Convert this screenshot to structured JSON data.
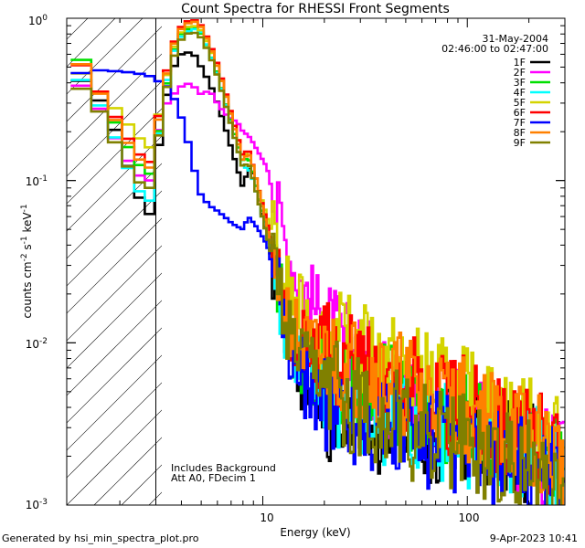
{
  "chart_data": {
    "type": "line",
    "title": "Count Spectra for RHESSI Front Segments",
    "xlabel": "Energy (keV)",
    "ylabel": "counts cm⁻² s⁻¹ keV⁻¹",
    "xscale": "log",
    "yscale": "log",
    "xlim": [
      1.1,
      300
    ],
    "ylim": [
      0.001,
      1.0
    ],
    "x_tick_labels": [
      "10",
      "100"
    ],
    "y_tick_labels": [
      "10⁻³",
      "10⁻²",
      "10⁻¹",
      "10⁰"
    ],
    "legend_position": "top-right",
    "date": "31-May-2004",
    "time_range": "02:46:00 to 02:47:00",
    "annotations": [
      "Includes Background",
      "Att A0, FDecim 1"
    ],
    "excluded_region_keV": [
      1.1,
      3.0
    ],
    "series": [
      {
        "name": "1F",
        "color": "#000000",
        "x": [
          1.2,
          1.5,
          2.0,
          2.4,
          2.8,
          3.0,
          3.4,
          3.8,
          4.2,
          4.6,
          5.0,
          5.5,
          6.0,
          6.5,
          7.0,
          7.5,
          8.0,
          8.5,
          9.0,
          9.5,
          10.5,
          11.5,
          12.5,
          14,
          16,
          18,
          20,
          22,
          25,
          28,
          32,
          36,
          40,
          45,
          50,
          60,
          70,
          80,
          100,
          120,
          150,
          200,
          250,
          290
        ],
        "y": [
          0.44,
          0.36,
          0.18,
          0.085,
          0.062,
          0.13,
          0.34,
          0.58,
          0.62,
          0.6,
          0.5,
          0.4,
          0.3,
          0.22,
          0.16,
          0.12,
          0.09,
          0.12,
          0.11,
          0.08,
          0.045,
          0.026,
          0.014,
          0.0085,
          0.006,
          0.005,
          0.0045,
          0.0035,
          0.003,
          0.004,
          0.0035,
          0.003,
          0.004,
          0.0032,
          0.0034,
          0.003,
          0.0028,
          0.0034,
          0.003,
          0.0028,
          0.0024,
          0.0021,
          0.0018,
          0.0015
        ]
      },
      {
        "name": "2F",
        "color": "#ff00ff",
        "x": [
          1.2,
          1.5,
          2.0,
          2.4,
          2.8,
          3.0,
          3.4,
          3.8,
          4.2,
          4.6,
          5.0,
          5.5,
          6.0,
          6.5,
          7.0,
          7.5,
          8.0,
          8.5,
          9.0,
          9.5,
          10.5,
          11.5,
          12.5,
          14,
          16,
          18,
          20,
          22,
          25,
          28,
          32,
          36,
          40,
          45,
          50,
          60,
          70,
          80,
          100,
          120,
          150,
          200,
          250,
          290
        ],
        "y": [
          0.42,
          0.32,
          0.16,
          0.11,
          0.1,
          0.18,
          0.3,
          0.36,
          0.4,
          0.38,
          0.34,
          0.36,
          0.3,
          0.26,
          0.24,
          0.23,
          0.2,
          0.19,
          0.17,
          0.15,
          0.12,
          0.07,
          0.05,
          0.03,
          0.022,
          0.017,
          0.013,
          0.011,
          0.009,
          0.008,
          0.007,
          0.006,
          0.0055,
          0.0048,
          0.0045,
          0.004,
          0.0038,
          0.0036,
          0.0033,
          0.003,
          0.0026,
          0.0022,
          0.0019,
          0.0016
        ]
      },
      {
        "name": "3F",
        "color": "#00e000",
        "x": [
          1.2,
          1.5,
          2.0,
          2.4,
          2.8,
          3.0,
          3.4,
          3.8,
          4.2,
          4.6,
          5.0,
          5.5,
          6.0,
          6.5,
          7.0,
          7.5,
          8.0,
          8.5,
          9.0,
          9.5,
          10.5,
          11.5,
          12.5,
          14,
          16,
          18,
          20,
          22,
          25,
          28,
          32,
          36,
          40,
          45,
          50,
          60,
          70,
          80,
          100,
          120,
          150,
          200,
          250,
          290
        ],
        "y": [
          0.65,
          0.4,
          0.2,
          0.13,
          0.11,
          0.16,
          0.4,
          0.75,
          0.85,
          0.88,
          0.8,
          0.62,
          0.46,
          0.32,
          0.23,
          0.17,
          0.13,
          0.14,
          0.11,
          0.08,
          0.05,
          0.03,
          0.016,
          0.01,
          0.008,
          0.007,
          0.0065,
          0.006,
          0.0058,
          0.0056,
          0.0054,
          0.005,
          0.0048,
          0.0046,
          0.0045,
          0.0042,
          0.004,
          0.0038,
          0.0035,
          0.0031,
          0.0027,
          0.0023,
          0.002,
          0.0017
        ]
      },
      {
        "name": "4F",
        "color": "#00ffff",
        "x": [
          1.2,
          1.5,
          2.0,
          2.4,
          2.8,
          3.0,
          3.4,
          3.8,
          4.2,
          4.6,
          5.0,
          5.5,
          6.0,
          6.5,
          7.0,
          7.5,
          8.0,
          8.5,
          9.0,
          9.5,
          10.5,
          11.5,
          12.5,
          14,
          16,
          18,
          20,
          22,
          25,
          28,
          32,
          36,
          40,
          45,
          50,
          60,
          70,
          80,
          100,
          120,
          150,
          200,
          250,
          290
        ],
        "y": [
          0.46,
          0.34,
          0.16,
          0.09,
          0.075,
          0.15,
          0.42,
          0.72,
          0.82,
          0.86,
          0.82,
          0.62,
          0.45,
          0.32,
          0.22,
          0.16,
          0.12,
          0.12,
          0.1,
          0.075,
          0.045,
          0.028,
          0.015,
          0.009,
          0.007,
          0.006,
          0.0055,
          0.005,
          0.0045,
          0.0042,
          0.004,
          0.0038,
          0.0035,
          0.0033,
          0.0032,
          0.003,
          0.0029,
          0.0028,
          0.0027,
          0.0025,
          0.0023,
          0.002,
          0.0018,
          0.0016
        ]
      },
      {
        "name": "5F",
        "color": "#d4d400",
        "x": [
          1.2,
          1.5,
          2.0,
          2.4,
          2.8,
          3.0,
          3.4,
          3.8,
          4.2,
          4.6,
          5.0,
          5.5,
          6.0,
          6.5,
          7.0,
          7.5,
          8.0,
          8.5,
          9.0,
          9.5,
          10.5,
          11.5,
          12.5,
          14,
          16,
          18,
          20,
          22,
          25,
          28,
          32,
          36,
          40,
          45,
          50,
          60,
          70,
          80,
          100,
          120,
          150,
          200,
          250,
          290
        ],
        "y": [
          0.5,
          0.38,
          0.26,
          0.19,
          0.16,
          0.21,
          0.45,
          0.76,
          0.88,
          0.9,
          0.84,
          0.66,
          0.5,
          0.36,
          0.26,
          0.19,
          0.14,
          0.15,
          0.12,
          0.09,
          0.06,
          0.04,
          0.025,
          0.018,
          0.014,
          0.012,
          0.011,
          0.01,
          0.0095,
          0.009,
          0.0085,
          0.008,
          0.0075,
          0.007,
          0.0065,
          0.006,
          0.0055,
          0.005,
          0.0045,
          0.004,
          0.0035,
          0.003,
          0.0026,
          0.0022
        ]
      },
      {
        "name": "6F",
        "color": "#ff0000",
        "x": [
          1.2,
          1.5,
          2.0,
          2.4,
          2.8,
          3.0,
          3.4,
          3.8,
          4.2,
          4.6,
          5.0,
          5.5,
          6.0,
          6.5,
          7.0,
          7.5,
          8.0,
          8.5,
          9.0,
          9.5,
          10.5,
          11.5,
          12.5,
          14,
          16,
          18,
          20,
          22,
          25,
          28,
          32,
          36,
          40,
          45,
          50,
          60,
          70,
          80,
          100,
          120,
          150,
          200,
          250,
          290
        ],
        "y": [
          0.58,
          0.4,
          0.22,
          0.15,
          0.13,
          0.2,
          0.48,
          0.82,
          0.95,
          0.98,
          0.9,
          0.7,
          0.52,
          0.37,
          0.26,
          0.19,
          0.14,
          0.16,
          0.12,
          0.09,
          0.055,
          0.034,
          0.02,
          0.013,
          0.01,
          0.009,
          0.0085,
          0.008,
          0.0075,
          0.007,
          0.0068,
          0.0065,
          0.006,
          0.0058,
          0.0055,
          0.005,
          0.0046,
          0.0043,
          0.004,
          0.0036,
          0.0031,
          0.0026,
          0.0022,
          0.0019
        ]
      },
      {
        "name": "7F",
        "color": "#0000ff",
        "x": [
          1.2,
          1.5,
          2.0,
          2.4,
          2.8,
          3.0,
          3.4,
          3.8,
          4.2,
          4.6,
          5.0,
          5.5,
          6.0,
          6.5,
          7.0,
          7.5,
          8.0,
          8.5,
          9.0,
          9.5,
          10.5,
          11.5,
          12.5,
          14,
          16,
          18,
          20,
          22,
          25,
          28,
          32,
          36,
          40,
          45,
          50,
          60,
          70,
          80,
          100,
          120,
          150,
          200,
          250,
          290
        ],
        "y": [
          0.45,
          0.48,
          0.47,
          0.46,
          0.44,
          0.42,
          0.38,
          0.3,
          0.2,
          0.12,
          0.08,
          0.07,
          0.065,
          0.06,
          0.055,
          0.052,
          0.05,
          0.06,
          0.055,
          0.05,
          0.04,
          0.025,
          0.013,
          0.008,
          0.006,
          0.005,
          0.0045,
          0.004,
          0.0037,
          0.0035,
          0.0033,
          0.0031,
          0.003,
          0.0028,
          0.0027,
          0.0025,
          0.0024,
          0.0023,
          0.0022,
          0.002,
          0.0019,
          0.0017,
          0.0015,
          0.0013
        ]
      },
      {
        "name": "8F",
        "color": "#ff8000",
        "x": [
          1.2,
          1.5,
          2.0,
          2.4,
          2.8,
          3.0,
          3.4,
          3.8,
          4.2,
          4.6,
          5.0,
          5.5,
          6.0,
          6.5,
          7.0,
          7.5,
          8.0,
          8.5,
          9.0,
          9.5,
          10.5,
          11.5,
          12.5,
          14,
          16,
          18,
          20,
          22,
          25,
          28,
          32,
          36,
          40,
          45,
          50,
          60,
          70,
          80,
          100,
          120,
          150,
          200,
          250,
          290
        ],
        "y": [
          0.6,
          0.39,
          0.21,
          0.14,
          0.12,
          0.19,
          0.46,
          0.8,
          0.92,
          0.96,
          0.88,
          0.68,
          0.5,
          0.36,
          0.25,
          0.18,
          0.13,
          0.15,
          0.12,
          0.09,
          0.05,
          0.032,
          0.018,
          0.012,
          0.009,
          0.0085,
          0.008,
          0.0075,
          0.007,
          0.0068,
          0.0065,
          0.0062,
          0.006,
          0.0056,
          0.0053,
          0.0048,
          0.0045,
          0.0042,
          0.0039,
          0.0035,
          0.003,
          0.0025,
          0.0021,
          0.0018
        ]
      },
      {
        "name": "9F",
        "color": "#808000",
        "x": [
          1.2,
          1.5,
          2.0,
          2.4,
          2.8,
          3.0,
          3.4,
          3.8,
          4.2,
          4.6,
          5.0,
          5.5,
          6.0,
          6.5,
          7.0,
          7.5,
          8.0,
          8.5,
          9.0,
          9.5,
          10.5,
          11.5,
          12.5,
          14,
          16,
          18,
          20,
          22,
          25,
          28,
          32,
          36,
          40,
          45,
          50,
          60,
          70,
          80,
          100,
          120,
          150,
          200,
          250,
          290
        ],
        "y": [
          0.4,
          0.31,
          0.15,
          0.1,
          0.09,
          0.15,
          0.38,
          0.68,
          0.8,
          0.82,
          0.76,
          0.6,
          0.44,
          0.31,
          0.22,
          0.16,
          0.12,
          0.13,
          0.1,
          0.075,
          0.045,
          0.028,
          0.015,
          0.009,
          0.007,
          0.006,
          0.0055,
          0.005,
          0.0045,
          0.004,
          0.0038,
          0.0036,
          0.0034,
          0.0032,
          0.003,
          0.0028,
          0.0026,
          0.0025,
          0.0023,
          0.0021,
          0.0019,
          0.0017,
          0.0015,
          0.0013
        ]
      }
    ]
  },
  "footer": {
    "generated_by": "Generated by hsi_min_spectra_plot.pro",
    "timestamp": "9-Apr-2023 10:41"
  }
}
